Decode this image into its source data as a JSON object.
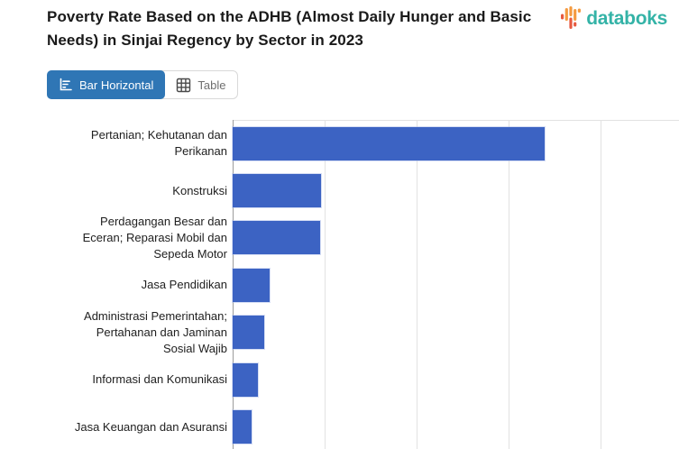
{
  "header": {
    "title": "Poverty Rate Based on the ADHB (Almost Daily Hunger and Basic Needs) in Sinjai Regency by Sector in 2023",
    "logo": {
      "text": "databoks",
      "text_color": "#34b3a7",
      "icon": "databoks-pulse-icon",
      "icon_colors": [
        "#f49a3f",
        "#e7593f"
      ]
    }
  },
  "toolbar": {
    "tabs": [
      {
        "label": "Bar Horizontal",
        "icon": "bar-horizontal-chart-icon",
        "active": true
      },
      {
        "label": "Table",
        "icon": "table-grid-icon",
        "active": false
      }
    ],
    "active_tab_color": "#2f76b5"
  },
  "chart_data": {
    "type": "bar",
    "orientation": "horizontal",
    "title": "Poverty Rate Based on the ADHB (Almost Daily Hunger and Basic Needs) in Sinjai Regency by Sector in 2023",
    "categories": [
      "Pertanian; Kehutanan dan Perikanan",
      "Konstruksi",
      "Perdagangan Besar dan Eceran; Reparasi Mobil dan Sepeda Motor",
      "Jasa Pendidikan",
      "Administrasi Pemerintahan; Pertahanan dan Jaminan Sosial Wajib",
      "Informasi dan Komunikasi",
      "Jasa Keuangan dan Asuransi"
    ],
    "values": [
      3.39,
      0.96,
      0.95,
      0.4,
      0.34,
      0.27,
      0.21
    ],
    "values_unit": "gridline units (x-axis tick labels cropped out of view; 1 unit = one gridline spacing)",
    "xlim": [
      0,
      4.85
    ],
    "x_gridlines_every": 1,
    "x_tick_labels_visible": false,
    "grid": true,
    "legend": "none",
    "bar_color": "#3c63c3",
    "gridline_color": "#e2e2e2",
    "axis_line_color": "#9c9c9c"
  }
}
